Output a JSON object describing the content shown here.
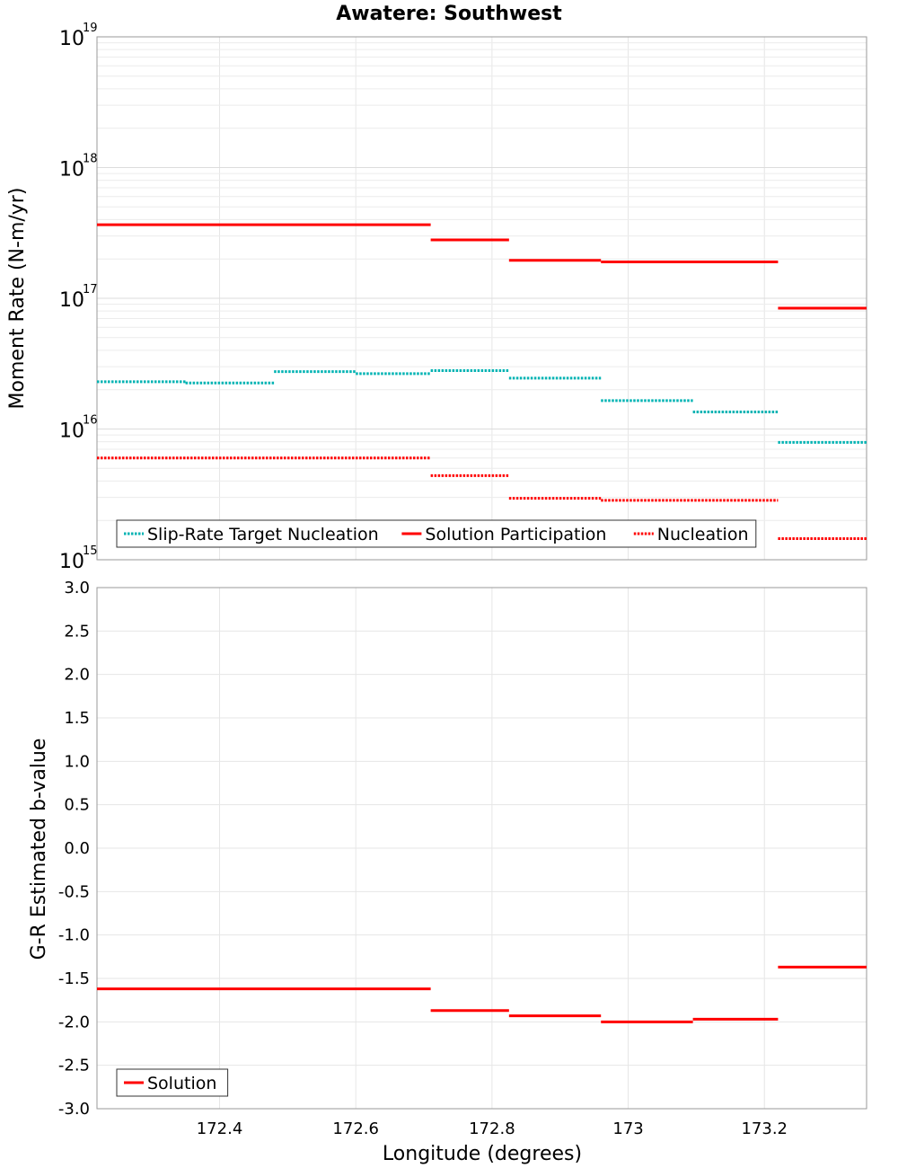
{
  "chart_data": [
    {
      "type": "line",
      "subtype": "step",
      "title": "Awatere: Southwest",
      "xlabel": "",
      "ylabel": "Moment Rate (N-m/yr)",
      "yscale": "log",
      "ylim": [
        1000000000000000.0,
        1e+19
      ],
      "xlim": [
        172.22,
        173.35
      ],
      "xticks": [
        172.4,
        172.6,
        172.8,
        173,
        173.2
      ],
      "xtick_labels": [],
      "y_tick_labels": [
        {
          "base": "10",
          "exp": "15",
          "value": 1000000000000000.0
        },
        {
          "base": "10",
          "exp": "16",
          "value": 1e+16
        },
        {
          "base": "10",
          "exp": "17",
          "value": 1e+17
        },
        {
          "base": "10",
          "exp": "18",
          "value": 1e+18
        },
        {
          "base": "10",
          "exp": "19",
          "value": 1e+19
        }
      ],
      "grid": true,
      "legend_position": "bottom-left",
      "series": [
        {
          "name": "Slip-Rate Target Nucleation",
          "color": "#00b3b3",
          "style": "dotted",
          "steps": [
            {
              "x0": 172.22,
              "x1": 172.35,
              "y": 2.3e+16
            },
            {
              "x0": 172.35,
              "x1": 172.48,
              "y": 2.25e+16
            },
            {
              "x0": 172.48,
              "x1": 172.6,
              "y": 2.75e+16
            },
            {
              "x0": 172.6,
              "x1": 172.71,
              "y": 2.65e+16
            },
            {
              "x0": 172.71,
              "x1": 172.825,
              "y": 2.8e+16
            },
            {
              "x0": 172.825,
              "x1": 172.96,
              "y": 2.45e+16
            },
            {
              "x0": 172.96,
              "x1": 173.095,
              "y": 1.65e+16
            },
            {
              "x0": 173.095,
              "x1": 173.22,
              "y": 1.35e+16
            },
            {
              "x0": 173.22,
              "x1": 173.35,
              "y": 7900000000000000.0
            }
          ]
        },
        {
          "name": "Solution Participation",
          "color": "#ff0000",
          "style": "solid",
          "steps": [
            {
              "x0": 172.22,
              "x1": 172.71,
              "y": 3.65e+17
            },
            {
              "x0": 172.71,
              "x1": 172.825,
              "y": 2.8e+17
            },
            {
              "x0": 172.825,
              "x1": 172.96,
              "y": 1.95e+17
            },
            {
              "x0": 172.96,
              "x1": 173.22,
              "y": 1.9e+17
            },
            {
              "x0": 173.22,
              "x1": 173.35,
              "y": 8.4e+16
            }
          ]
        },
        {
          "name": "Nucleation",
          "color": "#ff0000",
          "style": "dotted",
          "steps": [
            {
              "x0": 172.22,
              "x1": 172.71,
              "y": 6000000000000000.0
            },
            {
              "x0": 172.71,
              "x1": 172.825,
              "y": 4400000000000000.0
            },
            {
              "x0": 172.825,
              "x1": 172.96,
              "y": 2950000000000000.0
            },
            {
              "x0": 172.96,
              "x1": 173.22,
              "y": 2850000000000000.0
            },
            {
              "x0": 173.22,
              "x1": 173.35,
              "y": 1450000000000000.0
            }
          ]
        }
      ]
    },
    {
      "type": "line",
      "subtype": "step",
      "title": "",
      "xlabel": "Longitude (degrees)",
      "ylabel": "G-R Estimated b-value",
      "yscale": "linear",
      "ylim": [
        -3.0,
        3.0
      ],
      "yticks": [
        -3.0,
        -2.5,
        -2.0,
        -1.5,
        -1.0,
        -0.5,
        0.0,
        0.5,
        1.0,
        1.5,
        2.0,
        2.5,
        3.0
      ],
      "y_tick_labels": [
        "-3.0",
        "-2.5",
        "-2.0",
        "-1.5",
        "-1.0",
        "-0.5",
        "0.0",
        "0.5",
        "1.0",
        "1.5",
        "2.0",
        "2.5",
        "3.0"
      ],
      "xlim": [
        172.22,
        173.35
      ],
      "xticks": [
        172.4,
        172.6,
        172.8,
        173,
        173.2
      ],
      "xtick_labels": [
        "172.4",
        "172.6",
        "172.8",
        "173",
        "173.2"
      ],
      "grid": true,
      "legend_position": "bottom-left",
      "series": [
        {
          "name": "Solution",
          "color": "#ff0000",
          "style": "solid",
          "steps": [
            {
              "x0": 172.22,
              "x1": 172.71,
              "y": -1.62
            },
            {
              "x0": 172.71,
              "x1": 172.825,
              "y": -1.87
            },
            {
              "x0": 172.825,
              "x1": 172.96,
              "y": -1.93
            },
            {
              "x0": 172.96,
              "x1": 173.095,
              "y": -2.0
            },
            {
              "x0": 173.095,
              "x1": 173.22,
              "y": -1.97
            },
            {
              "x0": 173.22,
              "x1": 173.35,
              "y": -1.37
            }
          ]
        }
      ]
    }
  ]
}
